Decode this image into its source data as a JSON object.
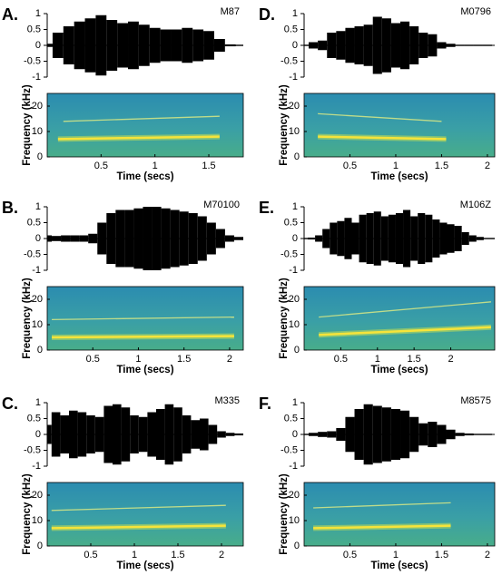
{
  "chart_data": [
    {
      "type": "waveform",
      "label": "A.",
      "title": "M87",
      "xlim": [
        0,
        1.82
      ],
      "ylim": [
        -1,
        1
      ],
      "yticks": [
        -1,
        -0.5,
        0,
        0.5,
        1
      ],
      "x": [
        0,
        0.1,
        0.2,
        0.3,
        0.4,
        0.5,
        0.6,
        0.7,
        0.8,
        0.9,
        1,
        1.1,
        1.2,
        1.3,
        1.4,
        1.5,
        1.6,
        1.7,
        1.8
      ],
      "values": [
        0.05,
        0.4,
        0.6,
        0.75,
        0.85,
        0.95,
        0.8,
        0.7,
        0.75,
        0.65,
        0.55,
        0.5,
        0.5,
        0.55,
        0.5,
        0.45,
        0.2,
        0.03,
        0.02
      ],
      "spectrogram": {
        "ylim": [
          0,
          25
        ],
        "yticks": [
          0,
          10,
          20
        ],
        "xticks": [
          0.5,
          1,
          1.5
        ],
        "xlabel": "Time (secs)",
        "ylabel": "Frequency (kHz)",
        "tracks": [
          {
            "x": [
              0.1,
              1.6
            ],
            "values": [
              7,
              8
            ]
          },
          {
            "x": [
              0.15,
              1.6
            ],
            "values": [
              14,
              16
            ]
          }
        ]
      }
    },
    {
      "type": "waveform",
      "label": "B.",
      "title": "M70100",
      "xlim": [
        0,
        2.15
      ],
      "ylim": [
        -1,
        1
      ],
      "yticks": [
        -1,
        -0.5,
        0,
        0.5,
        1
      ],
      "x": [
        0,
        0.1,
        0.2,
        0.3,
        0.4,
        0.5,
        0.6,
        0.7,
        0.8,
        0.9,
        1,
        1.1,
        1.2,
        1.3,
        1.4,
        1.5,
        1.6,
        1.7,
        1.8,
        1.9,
        2,
        2.1
      ],
      "values": [
        0.1,
        0.08,
        0.1,
        0.1,
        0.1,
        0.15,
        0.5,
        0.8,
        0.9,
        0.9,
        0.95,
        1,
        1,
        0.95,
        0.9,
        0.85,
        0.8,
        0.7,
        0.5,
        0.3,
        0.1,
        0.05
      ],
      "spectrogram": {
        "ylim": [
          0,
          25
        ],
        "yticks": [
          0,
          10,
          20
        ],
        "xticks": [
          0.5,
          1,
          1.5,
          2
        ],
        "xlabel": "Time (secs)",
        "ylabel": "Frequency (kHz)",
        "tracks": [
          {
            "x": [
              0.05,
              2.05
            ],
            "values": [
              5,
              5.5
            ]
          },
          {
            "x": [
              0.05,
              2.05
            ],
            "values": [
              12,
              13
            ]
          }
        ]
      }
    },
    {
      "type": "waveform",
      "label": "C.",
      "title": "M335",
      "xlim": [
        0,
        2.25
      ],
      "ylim": [
        -1,
        1
      ],
      "yticks": [
        -1,
        -0.5,
        0,
        0.5,
        1
      ],
      "x": [
        0,
        0.1,
        0.2,
        0.3,
        0.4,
        0.5,
        0.6,
        0.7,
        0.8,
        0.9,
        1,
        1.1,
        1.2,
        1.3,
        1.4,
        1.5,
        1.6,
        1.7,
        1.8,
        1.9,
        2,
        2.1,
        2.2
      ],
      "values": [
        0.3,
        0.7,
        0.6,
        0.75,
        0.7,
        0.6,
        0.55,
        0.9,
        0.95,
        0.85,
        0.6,
        0.55,
        0.7,
        0.8,
        0.95,
        0.85,
        0.6,
        0.45,
        0.5,
        0.3,
        0.1,
        0.05,
        0.03
      ],
      "spectrogram": {
        "ylim": [
          0,
          25
        ],
        "yticks": [
          0,
          10,
          20
        ],
        "xticks": [
          0.5,
          1,
          1.5,
          2
        ],
        "xlabel": "Time (secs)",
        "ylabel": "Frequency (kHz)",
        "tracks": [
          {
            "x": [
              0.05,
              2.05
            ],
            "values": [
              7,
              8
            ]
          },
          {
            "x": [
              0.05,
              2.05
            ],
            "values": [
              14,
              16
            ]
          }
        ]
      }
    },
    {
      "type": "waveform",
      "label": "D.",
      "title": "M0796",
      "xlim": [
        0,
        2.08
      ],
      "ylim": [
        -1,
        1
      ],
      "yticks": [
        -1,
        -0.5,
        0,
        0.5,
        1
      ],
      "x": [
        0,
        0.1,
        0.2,
        0.3,
        0.4,
        0.5,
        0.6,
        0.7,
        0.8,
        0.9,
        1,
        1.1,
        1.2,
        1.3,
        1.4,
        1.5,
        1.6,
        1.7,
        1.8,
        1.9,
        2
      ],
      "values": [
        0.02,
        0.1,
        0.15,
        0.4,
        0.45,
        0.55,
        0.6,
        0.65,
        0.9,
        0.85,
        0.7,
        0.75,
        0.6,
        0.4,
        0.35,
        0.1,
        0.05,
        0.02,
        0.02,
        0.02,
        0.02
      ],
      "spectrogram": {
        "ylim": [
          0,
          25
        ],
        "yticks": [
          0,
          10,
          20
        ],
        "xticks": [
          0.5,
          1,
          1.5,
          2
        ],
        "xlabel": "Time (secs)",
        "ylabel": "Frequency (kHz)",
        "tracks": [
          {
            "x": [
              0.15,
              1.55
            ],
            "values": [
              8,
              7
            ]
          },
          {
            "x": [
              0.15,
              1.5
            ],
            "values": [
              17,
              14
            ]
          }
        ]
      }
    },
    {
      "type": "waveform",
      "label": "E.",
      "title": "M106Z",
      "xlim": [
        0,
        2.6
      ],
      "ylim": [
        -1,
        1
      ],
      "yticks": [
        -1,
        -0.5,
        0,
        0.5,
        1
      ],
      "x": [
        0,
        0.1,
        0.2,
        0.3,
        0.4,
        0.5,
        0.6,
        0.7,
        0.8,
        0.9,
        1,
        1.1,
        1.2,
        1.3,
        1.4,
        1.5,
        1.6,
        1.7,
        1.8,
        1.9,
        2,
        2.1,
        2.2,
        2.3,
        2.4,
        2.5,
        2.6
      ],
      "values": [
        0.02,
        0.03,
        0.1,
        0.3,
        0.5,
        0.55,
        0.65,
        0.5,
        0.75,
        0.8,
        0.85,
        0.7,
        0.75,
        0.8,
        0.9,
        0.7,
        0.8,
        0.75,
        0.6,
        0.5,
        0.45,
        0.4,
        0.2,
        0.1,
        0.05,
        0.02,
        0.02
      ],
      "spectrogram": {
        "ylim": [
          0,
          25
        ],
        "yticks": [
          0,
          10,
          20
        ],
        "xticks": [
          0.5,
          1,
          1.5,
          2
        ],
        "xlabel": "Time (secs)",
        "ylabel": "Frequency (kHz)",
        "tracks": [
          {
            "x": [
              0.2,
              2.55
            ],
            "values": [
              6,
              9
            ]
          },
          {
            "x": [
              0.2,
              2.55
            ],
            "values": [
              13,
              19
            ]
          }
        ]
      }
    },
    {
      "type": "waveform",
      "label": "F.",
      "title": "M8575",
      "xlim": [
        0,
        2.08
      ],
      "ylim": [
        -1,
        1
      ],
      "yticks": [
        -1,
        -0.5,
        0,
        0.5,
        1
      ],
      "x": [
        0,
        0.1,
        0.2,
        0.3,
        0.4,
        0.5,
        0.6,
        0.7,
        0.8,
        0.9,
        1,
        1.1,
        1.2,
        1.3,
        1.4,
        1.5,
        1.6,
        1.7,
        1.8,
        1.9,
        2
      ],
      "values": [
        0.02,
        0.05,
        0.08,
        0.1,
        0.2,
        0.55,
        0.8,
        0.95,
        0.9,
        0.85,
        0.8,
        0.75,
        0.55,
        0.35,
        0.4,
        0.3,
        0.15,
        0.05,
        0.03,
        0.02,
        0.02
      ],
      "spectrogram": {
        "ylim": [
          0,
          25
        ],
        "yticks": [
          0,
          10,
          20
        ],
        "xticks": [
          0.5,
          1,
          1.5,
          2
        ],
        "xlabel": "Time (secs)",
        "ylabel": "Frequency (kHz)",
        "tracks": [
          {
            "x": [
              0.1,
              1.6
            ],
            "values": [
              7,
              8
            ]
          },
          {
            "x": [
              0.1,
              1.6
            ],
            "values": [
              15,
              17
            ]
          }
        ]
      }
    }
  ]
}
